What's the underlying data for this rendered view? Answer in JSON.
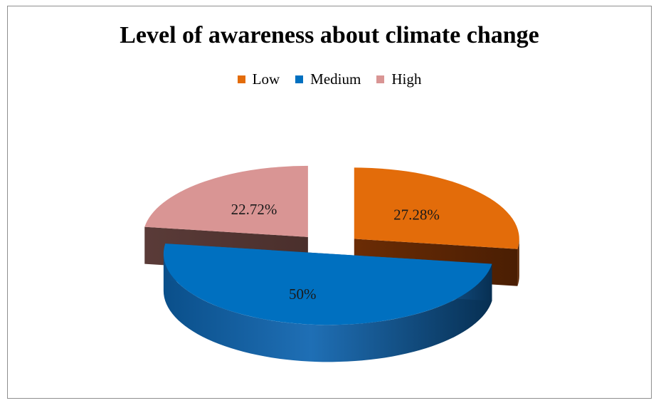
{
  "chart_data": {
    "type": "pie",
    "title": "Level of awareness about climate change",
    "legend_position": "top",
    "categories": [
      "Low",
      "Medium",
      "High"
    ],
    "values": [
      27.28,
      50,
      22.72
    ],
    "labels": [
      "27.28%",
      "50%",
      "22.72%"
    ],
    "colors": {
      "Low": "#e36c0a",
      "Medium": "#0070c0",
      "High": "#d99594"
    },
    "three_d": true,
    "exploded": true
  }
}
